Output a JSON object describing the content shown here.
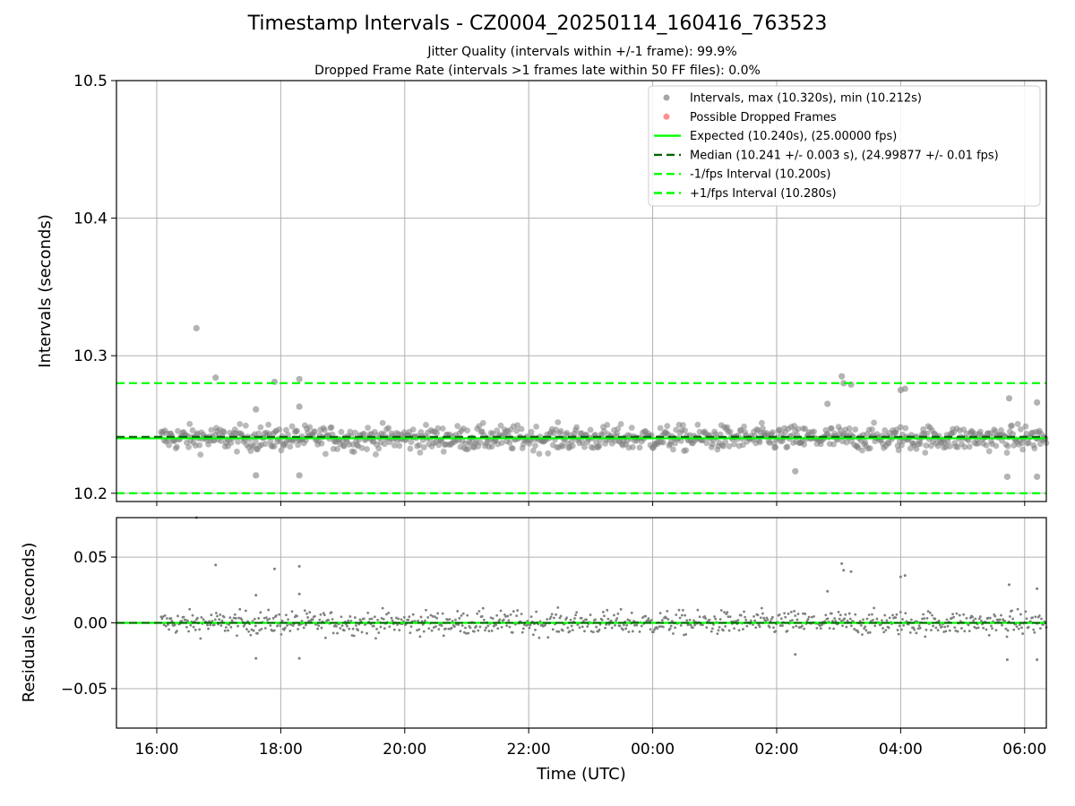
{
  "chart_data": {
    "type": "scatter",
    "title": "Timestamp Intervals - CZ0004_20250114_160416_763523",
    "subtitle_1": "Jitter Quality (intervals within +/-1 frame): 99.9%",
    "subtitle_2": "Dropped Frame Rate (intervals >1 frames late within 50 FF files): 0.0%",
    "xlabel": "Time (UTC)",
    "x_ticks": [
      "16:00",
      "18:00",
      "20:00",
      "22:00",
      "00:00",
      "02:00",
      "04:00",
      "06:00"
    ],
    "x_range_hours_since_1600": [
      -0.65,
      14.35
    ],
    "x_data_start_hours": 0.07,
    "x_data_end_hours": 14.35,
    "top_panel": {
      "ylabel": "Intervals (seconds)",
      "ylim": [
        10.194,
        10.5
      ],
      "y_ticks": [
        "10.2",
        "10.3",
        "10.4",
        "10.5"
      ],
      "grid": true,
      "expected": 10.24,
      "median": 10.241,
      "lower": 10.2,
      "upper": 10.28,
      "max": 10.32,
      "min": 10.212,
      "outliers": [
        {
          "x": 0.64,
          "y": 10.32
        },
        {
          "x": 0.95,
          "y": 10.284
        },
        {
          "x": 1.9,
          "y": 10.281
        },
        {
          "x": 2.3,
          "y": 10.283
        },
        {
          "x": 2.3,
          "y": 10.263
        },
        {
          "x": 1.6,
          "y": 10.261
        },
        {
          "x": 1.6,
          "y": 10.213
        },
        {
          "x": 2.3,
          "y": 10.213
        },
        {
          "x": 11.05,
          "y": 10.285
        },
        {
          "x": 11.08,
          "y": 10.28
        },
        {
          "x": 11.2,
          "y": 10.279
        },
        {
          "x": 12.07,
          "y": 10.276
        },
        {
          "x": 12.0,
          "y": 10.275
        },
        {
          "x": 10.82,
          "y": 10.265
        },
        {
          "x": 13.75,
          "y": 10.269
        },
        {
          "x": 14.2,
          "y": 10.266
        },
        {
          "x": 13.72,
          "y": 10.212
        },
        {
          "x": 14.2,
          "y": 10.212
        },
        {
          "x": 10.3,
          "y": 10.216
        }
      ]
    },
    "bottom_panel": {
      "ylabel": "Residuals (seconds)",
      "ylim": [
        -0.08,
        0.08
      ],
      "y_ticks": [
        "0.05",
        "0.00",
        "−0.05"
      ],
      "y_tick_values": [
        0.05,
        0.0,
        -0.05
      ],
      "grid": true,
      "zero_line": 0.0,
      "outliers": [
        {
          "x": 0.64,
          "y": 0.08
        },
        {
          "x": 0.95,
          "y": 0.044
        },
        {
          "x": 1.9,
          "y": 0.041
        },
        {
          "x": 2.3,
          "y": 0.043
        },
        {
          "x": 2.3,
          "y": 0.022
        },
        {
          "x": 1.6,
          "y": 0.021
        },
        {
          "x": 1.6,
          "y": -0.027
        },
        {
          "x": 2.3,
          "y": -0.027
        },
        {
          "x": 11.05,
          "y": 0.045
        },
        {
          "x": 11.08,
          "y": 0.04
        },
        {
          "x": 11.2,
          "y": 0.039
        },
        {
          "x": 12.07,
          "y": 0.036
        },
        {
          "x": 12.0,
          "y": 0.035
        },
        {
          "x": 10.82,
          "y": 0.024
        },
        {
          "x": 13.75,
          "y": 0.029
        },
        {
          "x": 14.2,
          "y": 0.026
        },
        {
          "x": 13.72,
          "y": -0.028
        },
        {
          "x": 14.2,
          "y": -0.028
        },
        {
          "x": 10.3,
          "y": -0.024
        }
      ]
    },
    "legend": {
      "placement": "upper right",
      "entries": [
        {
          "label": "Intervals, max (10.320s), min (10.212s)",
          "marker": "dot",
          "color": "#808080"
        },
        {
          "label": "Possible Dropped Frames",
          "marker": "dot",
          "color": "#ff6060"
        },
        {
          "label": "Expected (10.240s), (25.00000 fps)",
          "marker": "solid",
          "color": "#00ff00"
        },
        {
          "label": "Median (10.241 +/- 0.003 s), (24.99877 +/- 0.01 fps)",
          "marker": "dashed",
          "color": "#006400"
        },
        {
          "label": "-1/fps Interval (10.200s)",
          "marker": "dashed",
          "color": "#00ff00"
        },
        {
          "label": "+1/fps Interval (10.280s)",
          "marker": "dashed",
          "color": "#00ff00"
        }
      ]
    },
    "colors": {
      "points": "#808080",
      "dropped": "#ff6060",
      "expected": "#00ff00",
      "median": "#006400",
      "limits": "#00ff00",
      "grid": "#b0b0b0"
    }
  }
}
